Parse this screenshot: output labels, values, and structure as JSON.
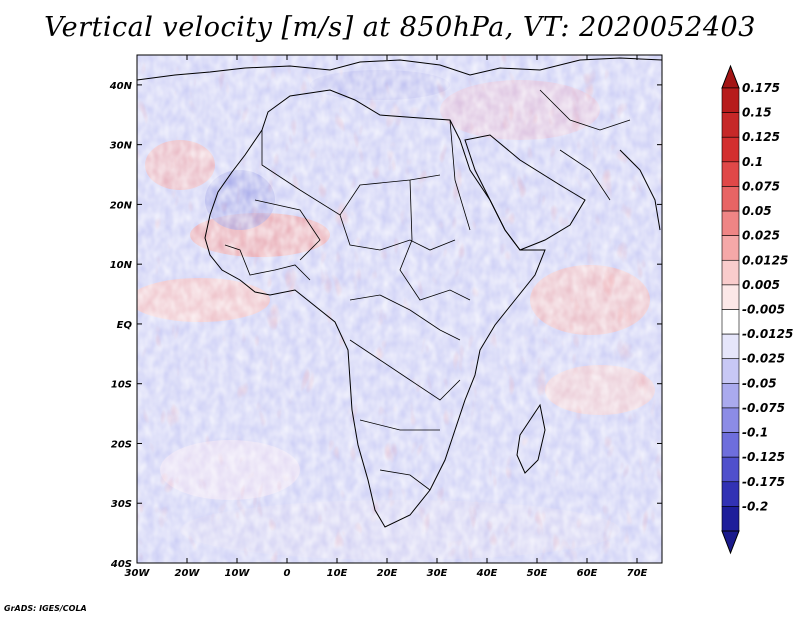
{
  "title": "Vertical velocity [m/s] at 850hPa, VT: 2020052403",
  "credit": "GrADS: IGES/COLA",
  "map": {
    "variable": "Vertical velocity",
    "units": "m/s",
    "level": "850hPa",
    "valid_time": "2020052403",
    "lon_range": [
      -30,
      75
    ],
    "lat_range": [
      -40,
      45
    ],
    "lat_ticks": [
      {
        "value": 40,
        "label": "40N"
      },
      {
        "value": 30,
        "label": "30N"
      },
      {
        "value": 20,
        "label": "20N"
      },
      {
        "value": 10,
        "label": "10N"
      },
      {
        "value": 0,
        "label": "EQ"
      },
      {
        "value": -10,
        "label": "10S"
      },
      {
        "value": -20,
        "label": "20S"
      },
      {
        "value": -30,
        "label": "30S"
      },
      {
        "value": -40,
        "label": "40S"
      }
    ],
    "lon_ticks": [
      {
        "value": -30,
        "label": "30W"
      },
      {
        "value": -20,
        "label": "20W"
      },
      {
        "value": -10,
        "label": "10W"
      },
      {
        "value": 0,
        "label": "0"
      },
      {
        "value": 10,
        "label": "10E"
      },
      {
        "value": 20,
        "label": "20E"
      },
      {
        "value": 30,
        "label": "30E"
      },
      {
        "value": 40,
        "label": "40E"
      },
      {
        "value": 50,
        "label": "50E"
      },
      {
        "value": 60,
        "label": "60E"
      },
      {
        "value": 70,
        "label": "70E"
      }
    ]
  },
  "colorbar": {
    "levels": [
      {
        "label": "0.175",
        "color": "#b71c1c"
      },
      {
        "label": "0.15",
        "color": "#c62828"
      },
      {
        "label": "0.125",
        "color": "#d32f2f"
      },
      {
        "label": "0.1",
        "color": "#e04848"
      },
      {
        "label": "0.075",
        "color": "#e86464"
      },
      {
        "label": "0.05",
        "color": "#ef8585"
      },
      {
        "label": "0.025",
        "color": "#f5a8a8"
      },
      {
        "label": "0.0125",
        "color": "#f9cccc"
      },
      {
        "label": "0.005",
        "color": "#fce8e8"
      },
      {
        "label": "-0.005",
        "color": "#ffffff"
      },
      {
        "label": "-0.0125",
        "color": "#e6e6fb"
      },
      {
        "label": "-0.025",
        "color": "#c8c8f5"
      },
      {
        "label": "-0.05",
        "color": "#aaaaee"
      },
      {
        "label": "-0.075",
        "color": "#8c8ce6"
      },
      {
        "label": "-0.1",
        "color": "#6e6edc"
      },
      {
        "label": "-0.125",
        "color": "#5050cc"
      },
      {
        "label": "-0.175",
        "color": "#3232b4"
      },
      {
        "label": "-0.2",
        "color": "#1e1e9a"
      }
    ],
    "top_color": "#a31515",
    "bottom_color": "#1a1a8c"
  },
  "colors": {
    "land_outline": "#000000",
    "background_blue": "#c3c6f2",
    "background_red": "#f3b3b3"
  }
}
